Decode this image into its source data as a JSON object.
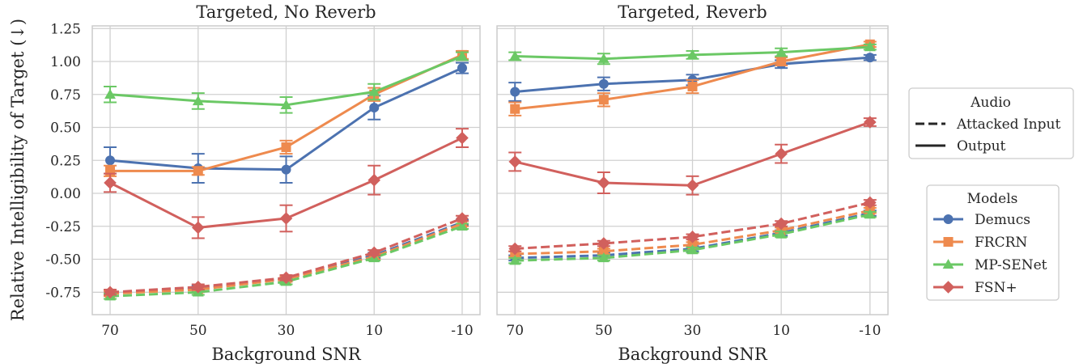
{
  "chart_data": {
    "type": "line",
    "ylabel": "Relative Intelligibility of Target (↓)",
    "xlabel": "Background SNR",
    "categories": [
      "70",
      "50",
      "30",
      "10",
      "-10"
    ],
    "ylim": [
      -0.92,
      1.27
    ],
    "yticks": [
      "1.25",
      "1.00",
      "0.75",
      "0.50",
      "0.25",
      "0.00",
      "-0.25",
      "-0.50",
      "-0.75"
    ],
    "ytick_values": [
      1.25,
      1.0,
      0.75,
      0.5,
      0.25,
      0.0,
      -0.25,
      -0.5,
      -0.75
    ],
    "grid": true,
    "colors": {
      "Demucs": "#4c72b0",
      "FRCRN": "#ee8a4e",
      "MP-SENet": "#6bc865",
      "FSN+": "#d1605d"
    },
    "markers": {
      "Demucs": "circle",
      "FRCRN": "square",
      "MP-SENet": "triangle",
      "FSN+": "diamond"
    },
    "panels": [
      {
        "title": "Targeted, No Reverb",
        "series": [
          {
            "model": "Demucs",
            "audio": "Output",
            "values": [
              0.25,
              0.19,
              0.18,
              0.65,
              0.95
            ],
            "err": [
              0.1,
              0.11,
              0.1,
              0.09,
              0.04
            ]
          },
          {
            "model": "FRCRN",
            "audio": "Output",
            "values": [
              0.17,
              0.17,
              0.35,
              0.75,
              1.05
            ],
            "err": [
              0.04,
              0.03,
              0.05,
              0.05,
              0.03
            ]
          },
          {
            "model": "MP-SENet",
            "audio": "Output",
            "values": [
              0.75,
              0.7,
              0.67,
              0.77,
              1.04
            ],
            "err": [
              0.06,
              0.06,
              0.06,
              0.06,
              0.03
            ]
          },
          {
            "model": "FSN+",
            "audio": "Output",
            "values": [
              0.08,
              -0.26,
              -0.19,
              0.1,
              0.42
            ],
            "err": [
              0.07,
              0.08,
              0.1,
              0.11,
              0.07
            ]
          },
          {
            "model": "Demucs",
            "audio": "Attacked Input",
            "values": [
              -0.76,
              -0.72,
              -0.65,
              -0.47,
              -0.22
            ],
            "err": [
              0.02,
              0.02,
              0.02,
              0.02,
              0.02
            ]
          },
          {
            "model": "FRCRN",
            "audio": "Attacked Input",
            "values": [
              -0.76,
              -0.73,
              -0.65,
              -0.48,
              -0.23
            ],
            "err": [
              0.02,
              0.02,
              0.02,
              0.02,
              0.02
            ]
          },
          {
            "model": "MP-SENet",
            "audio": "Attacked Input",
            "values": [
              -0.78,
              -0.75,
              -0.67,
              -0.49,
              -0.25
            ],
            "err": [
              0.02,
              0.02,
              0.02,
              0.02,
              0.02
            ]
          },
          {
            "model": "FSN+",
            "audio": "Attacked Input",
            "values": [
              -0.75,
              -0.71,
              -0.64,
              -0.45,
              -0.19
            ],
            "err": [
              0.02,
              0.02,
              0.02,
              0.02,
              0.02
            ]
          }
        ]
      },
      {
        "title": "Targeted, Reverb",
        "series": [
          {
            "model": "Demucs",
            "audio": "Output",
            "values": [
              0.77,
              0.83,
              0.86,
              0.98,
              1.03
            ],
            "err": [
              0.07,
              0.05,
              0.04,
              0.03,
              0.02
            ]
          },
          {
            "model": "FRCRN",
            "audio": "Output",
            "values": [
              0.64,
              0.71,
              0.81,
              1.0,
              1.13
            ],
            "err": [
              0.05,
              0.05,
              0.05,
              0.03,
              0.02
            ]
          },
          {
            "model": "MP-SENet",
            "audio": "Output",
            "values": [
              1.04,
              1.02,
              1.05,
              1.07,
              1.11
            ],
            "err": [
              0.03,
              0.04,
              0.03,
              0.03,
              0.02
            ]
          },
          {
            "model": "FSN+",
            "audio": "Output",
            "values": [
              0.24,
              0.08,
              0.06,
              0.3,
              0.54
            ],
            "err": [
              0.07,
              0.08,
              0.07,
              0.07,
              0.03
            ]
          },
          {
            "model": "Demucs",
            "audio": "Attacked Input",
            "values": [
              -0.49,
              -0.47,
              -0.42,
              -0.3,
              -0.15
            ],
            "err": [
              0.02,
              0.02,
              0.02,
              0.02,
              0.02
            ]
          },
          {
            "model": "FRCRN",
            "audio": "Attacked Input",
            "values": [
              -0.46,
              -0.44,
              -0.39,
              -0.28,
              -0.13
            ],
            "err": [
              0.02,
              0.02,
              0.02,
              0.02,
              0.02
            ]
          },
          {
            "model": "MP-SENet",
            "audio": "Attacked Input",
            "values": [
              -0.51,
              -0.49,
              -0.43,
              -0.31,
              -0.16
            ],
            "err": [
              0.02,
              0.02,
              0.02,
              0.02,
              0.02
            ]
          },
          {
            "model": "FSN+",
            "audio": "Attacked Input",
            "values": [
              -0.42,
              -0.38,
              -0.33,
              -0.23,
              -0.07
            ],
            "err": [
              0.02,
              0.02,
              0.02,
              0.02,
              0.02
            ]
          }
        ]
      }
    ],
    "legends": [
      {
        "title": "Audio",
        "placement": "right-upper",
        "entries": [
          {
            "label": "Attacked Input",
            "style": "dashed"
          },
          {
            "label": "Output",
            "style": "solid"
          }
        ]
      },
      {
        "title": "Models",
        "placement": "right-lower",
        "entries": [
          {
            "label": "Demucs"
          },
          {
            "label": "FRCRN"
          },
          {
            "label": "MP-SENet"
          },
          {
            "label": "FSN+"
          }
        ]
      }
    ]
  }
}
